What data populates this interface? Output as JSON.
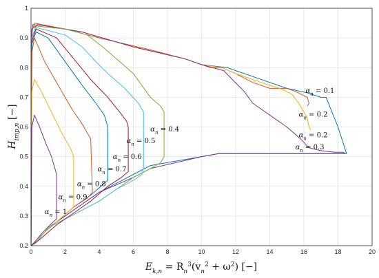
{
  "chart_data": {
    "type": "line",
    "title": "",
    "xlabel": {
      "main": "E",
      "sub": "k,n",
      "eq": " = R",
      "eq_sub": "n",
      "eq_sup": "3",
      "mid": "(v",
      "mid_sub": "n",
      "mid_sup": "2",
      "tail": " + ω",
      "tail_sup": "2",
      "unit": ") [−]"
    },
    "ylabel": {
      "main": "H",
      "sub": "imp,n",
      "unit": " [−]"
    },
    "xlim": [
      0,
      20
    ],
    "ylim": [
      0.2,
      1
    ],
    "xticks": [
      0,
      2,
      4,
      6,
      8,
      10,
      12,
      14,
      16,
      18,
      20
    ],
    "yticks": [
      0.2,
      0.3,
      0.4,
      0.5,
      0.6,
      0.7,
      0.8,
      0.9,
      1
    ],
    "grid": true,
    "series": [
      {
        "name": "α_n = 0.1",
        "color": "#0072BD",
        "x": [
          0,
          0.05,
          0.1,
          1,
          3,
          6,
          9,
          10,
          11.5,
          12,
          13,
          14,
          15,
          16.2,
          17,
          17.3,
          18.0,
          18.5,
          17.5,
          15,
          13,
          11,
          10,
          7,
          6,
          4,
          3,
          2,
          1,
          0.3,
          0
        ],
        "y": [
          0.2,
          0.9,
          0.945,
          0.94,
          0.92,
          0.87,
          0.83,
          0.81,
          0.8,
          0.79,
          0.77,
          0.75,
          0.73,
          0.715,
          0.7,
          0.7,
          0.6,
          0.51,
          0.51,
          0.51,
          0.51,
          0.51,
          0.5,
          0.47,
          0.44,
          0.38,
          0.34,
          0.3,
          0.26,
          0.21,
          0.2
        ]
      },
      {
        "name": "α_n = 0.2",
        "color": "#D95319",
        "x": [
          0,
          0.05,
          0.2,
          2,
          4,
          7,
          9,
          10.5,
          11.2,
          12,
          13,
          14,
          15,
          15.5,
          16.2,
          16.3,
          16.2
        ],
        "y": [
          0.2,
          0.92,
          0.95,
          0.93,
          0.9,
          0.86,
          0.83,
          0.8,
          0.8,
          0.78,
          0.75,
          0.73,
          0.73,
          0.72,
          0.7,
          0.68,
          0.67
        ]
      },
      {
        "name": "α_n = 0.2",
        "color": "#EDB120",
        "x": [
          0,
          0.05,
          0.3,
          3,
          6,
          9,
          10,
          11.2,
          12,
          13,
          14,
          14.6,
          15.3,
          15.7,
          16,
          16.2,
          16.3,
          16.4
        ],
        "y": [
          0.2,
          0.93,
          0.945,
          0.92,
          0.87,
          0.83,
          0.81,
          0.8,
          0.78,
          0.76,
          0.74,
          0.73,
          0.71,
          0.68,
          0.65,
          0.63,
          0.6,
          0.59
        ]
      },
      {
        "name": "α_n = 0.3",
        "color": "#7E2F8E",
        "x": [
          0,
          0.05,
          0.4,
          3,
          6,
          9,
          10,
          11.3,
          11.8,
          12.5,
          13,
          14,
          15,
          15.8,
          16.3,
          17,
          17.8,
          18.3,
          18.4,
          17.5,
          15,
          13,
          11,
          10,
          7,
          6,
          4,
          3,
          2,
          1,
          0.3,
          0
        ],
        "y": [
          0.2,
          0.93,
          0.945,
          0.92,
          0.87,
          0.83,
          0.81,
          0.79,
          0.76,
          0.72,
          0.68,
          0.64,
          0.6,
          0.56,
          0.53,
          0.52,
          0.515,
          0.515,
          0.51,
          0.51,
          0.51,
          0.51,
          0.51,
          0.5,
          0.46,
          0.43,
          0.38,
          0.34,
          0.3,
          0.26,
          0.21,
          0.2
        ]
      },
      {
        "name": "α_n = 0.4",
        "color": "#77AC30",
        "x": [
          0,
          0.05,
          0.3,
          2,
          3.3,
          4.2,
          5,
          6,
          7,
          7.6,
          7.8,
          7.8,
          7.6,
          7,
          6,
          5,
          4,
          3,
          2,
          1,
          0.3,
          0
        ],
        "y": [
          0.2,
          0.9,
          0.94,
          0.93,
          0.91,
          0.87,
          0.83,
          0.78,
          0.7,
          0.67,
          0.65,
          0.5,
          0.48,
          0.46,
          0.43,
          0.39,
          0.35,
          0.32,
          0.29,
          0.26,
          0.21,
          0.2
        ]
      },
      {
        "name": "α_n = 0.5",
        "color": "#4DBEEE",
        "x": [
          0,
          0.05,
          0.3,
          2,
          3,
          3.8,
          4.5,
          5.5,
          6.3,
          6.6,
          6.6,
          6.5,
          6,
          5,
          4,
          3,
          2,
          1,
          0.3,
          0
        ],
        "y": [
          0.2,
          0.9,
          0.935,
          0.91,
          0.87,
          0.82,
          0.78,
          0.73,
          0.68,
          0.65,
          0.46,
          0.44,
          0.42,
          0.39,
          0.35,
          0.32,
          0.29,
          0.26,
          0.21,
          0.2
        ]
      },
      {
        "name": "α_n = 0.6",
        "color": "#A2142F",
        "x": [
          0,
          0.05,
          0.3,
          1.5,
          2.5,
          3.5,
          4.5,
          5.2,
          5.6,
          5.7,
          5.7,
          5.3,
          4.5,
          3.5,
          2.5,
          1.5,
          0.5,
          0
        ],
        "y": [
          0.2,
          0.89,
          0.93,
          0.9,
          0.83,
          0.76,
          0.7,
          0.65,
          0.62,
          0.6,
          0.45,
          0.43,
          0.4,
          0.35,
          0.31,
          0.27,
          0.22,
          0.2
        ]
      },
      {
        "name": "α_n = 0.7",
        "color": "#0072BD",
        "x": [
          0,
          0.05,
          0.3,
          1,
          2,
          3,
          3.8,
          4.3,
          4.5,
          4.5,
          4.3,
          3.5,
          2.5,
          1.5,
          0.5,
          0
        ],
        "y": [
          0.2,
          0.88,
          0.92,
          0.9,
          0.82,
          0.74,
          0.68,
          0.64,
          0.6,
          0.42,
          0.41,
          0.37,
          0.33,
          0.28,
          0.23,
          0.2
        ]
      },
      {
        "name": "α_n = 0.8",
        "color": "#D95319",
        "x": [
          0,
          0.05,
          0.2,
          0.8,
          1.6,
          2.4,
          3,
          3.5,
          3.6,
          3.3,
          2.5,
          1.5,
          0.5,
          0
        ],
        "y": [
          0.2,
          0.85,
          0.9,
          0.82,
          0.74,
          0.66,
          0.61,
          0.56,
          0.38,
          0.36,
          0.33,
          0.28,
          0.23,
          0.2
        ]
      },
      {
        "name": "α_n = 0.9",
        "color": "#EDB120",
        "x": [
          0,
          0.05,
          0.2,
          0.6,
          1.2,
          1.8,
          2.3,
          2.5,
          2.5,
          2.3,
          1.5,
          0.5,
          0
        ],
        "y": [
          0.2,
          0.72,
          0.76,
          0.72,
          0.65,
          0.58,
          0.53,
          0.5,
          0.33,
          0.32,
          0.28,
          0.23,
          0.2
        ]
      },
      {
        "name": "α_n = 1",
        "color": "#7E2F8E",
        "x": [
          0,
          0.05,
          0.2,
          0.5,
          0.9,
          1.2,
          1.4,
          1.5,
          1.5,
          1.3,
          0.6,
          0.2,
          0
        ],
        "y": [
          0.2,
          0.6,
          0.64,
          0.6,
          0.54,
          0.5,
          0.46,
          0.44,
          0.29,
          0.28,
          0.24,
          0.21,
          0.2
        ]
      }
    ],
    "annotations": [
      {
        "series": "α",
        "sub": "n",
        "text": " = 0.1",
        "x": 16.1,
        "y": 0.715
      },
      {
        "series": "α",
        "sub": "n",
        "text": " = 0.2",
        "x": 15.7,
        "y": 0.635
      },
      {
        "series": "α",
        "sub": "n",
        "text": " = 0.2",
        "x": 15.7,
        "y": 0.565
      },
      {
        "series": "α",
        "sub": "n",
        "text": " = 0.3",
        "x": 15.5,
        "y": 0.525
      },
      {
        "series": "α",
        "sub": "n",
        "text": " = 0.4",
        "x": 7.0,
        "y": 0.585
      },
      {
        "series": "α",
        "sub": "n",
        "text": " = 0.5",
        "x": 5.6,
        "y": 0.545
      },
      {
        "series": "α",
        "sub": "n",
        "text": " = 0.6",
        "x": 4.8,
        "y": 0.492
      },
      {
        "series": "α",
        "sub": "n",
        "text": " = 0.7",
        "x": 3.9,
        "y": 0.451
      },
      {
        "series": "α",
        "sub": "n",
        "text": " = 0.8",
        "x": 2.7,
        "y": 0.401
      },
      {
        "series": "α",
        "sub": "n",
        "text": " = 0.9",
        "x": 1.6,
        "y": 0.357
      },
      {
        "series": "α",
        "sub": "n",
        "text": " = 1",
        "x": 0.8,
        "y": 0.307
      }
    ]
  }
}
